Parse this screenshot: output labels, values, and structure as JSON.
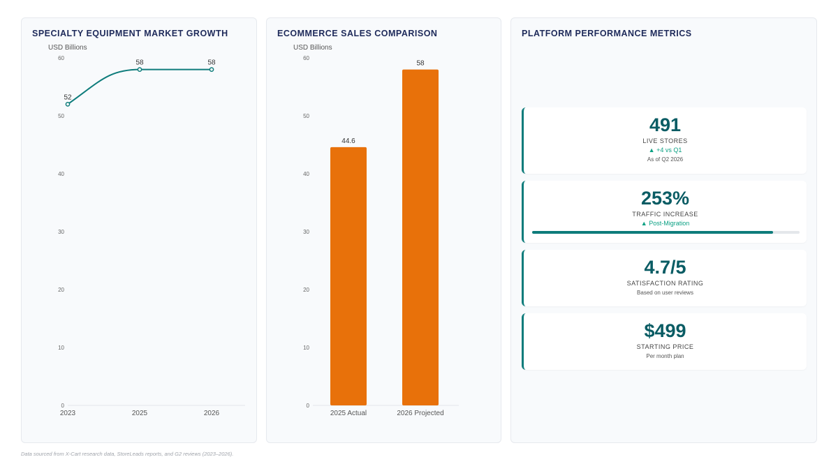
{
  "chart_data": [
    {
      "type": "line",
      "title": "SPECIALTY EQUIPMENT MARKET GROWTH",
      "ylabel": "USD Billions",
      "x": [
        "2023",
        "2025",
        "2026"
      ],
      "values": [
        52,
        58,
        58
      ],
      "ylim": [
        0,
        60
      ],
      "yticks": [
        0,
        10,
        20,
        30,
        40,
        50,
        60
      ],
      "color": "#0e7c7b",
      "grid": false
    },
    {
      "type": "bar",
      "title": "ECOMMERCE SALES COMPARISON",
      "ylabel": "USD Billions",
      "categories": [
        "2025 Actual",
        "2026 Projected"
      ],
      "values": [
        44.6,
        58
      ],
      "ylim": [
        0,
        60
      ],
      "yticks": [
        0,
        10,
        20,
        30,
        40,
        50,
        60
      ],
      "color": "#e8710a",
      "grid": false
    }
  ],
  "metrics": {
    "title": "PLATFORM PERFORMANCE METRICS",
    "cards": [
      {
        "value": "491",
        "label": "LIVE STORES",
        "delta": "▲ +4 vs Q1",
        "note": "As of Q2 2026"
      },
      {
        "value": "253%",
        "label": "TRAFFIC INCREASE",
        "delta": "▲ Post-Migration",
        "progress": 0.9
      },
      {
        "value": "4.7/5",
        "label": "SATISFACTION RATING",
        "note": "Based on user reviews"
      },
      {
        "value": "$499",
        "label": "STARTING PRICE",
        "note": "Per month plan"
      }
    ]
  },
  "footer": "Data sourced from X-Cart research data, StoreLeads reports, and G2 reviews (2023–2026).",
  "colors": {
    "accent": "#0e7c7b",
    "bar": "#e8710a",
    "title": "#1e2a5a"
  }
}
